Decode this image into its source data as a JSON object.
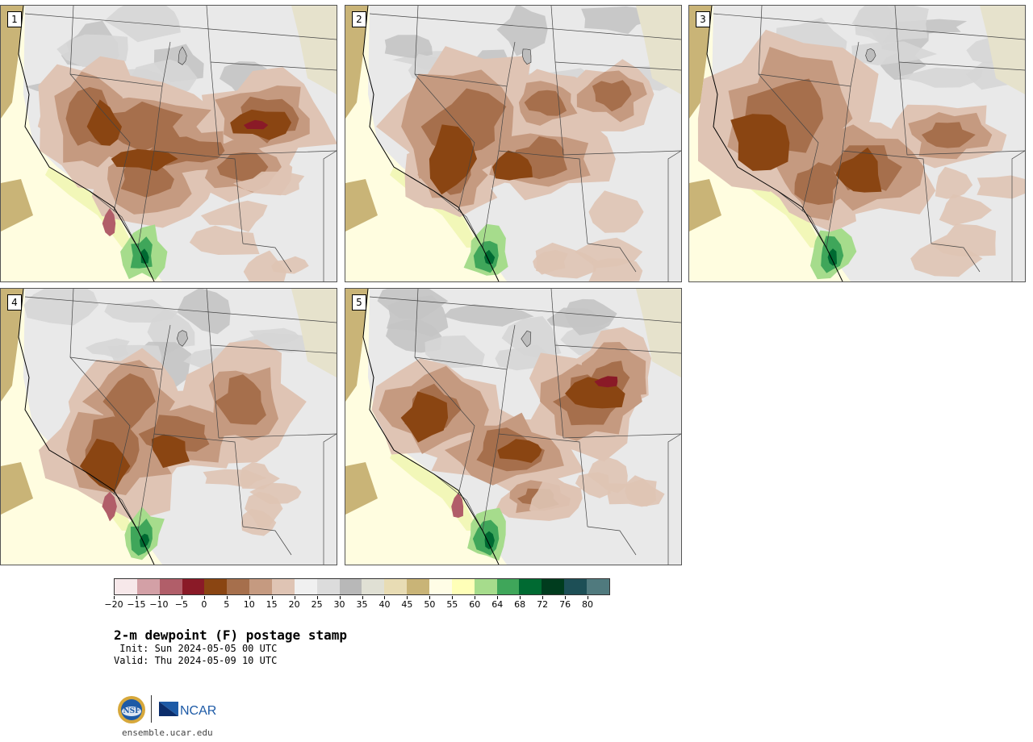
{
  "panels": [
    {
      "label": "1"
    },
    {
      "label": "2"
    },
    {
      "label": "3"
    },
    {
      "label": "4"
    },
    {
      "label": "5"
    }
  ],
  "colorbar": {
    "colors": [
      "#f7e8ea",
      "#d3a0a6",
      "#b15e69",
      "#8a1a27",
      "#8a4512",
      "#a66f4c",
      "#c59a80",
      "#dfc4b4",
      "#f0f0f0",
      "#dcdcdc",
      "#b8b8b8",
      "#e0e0d4",
      "#e8dcb4",
      "#c9b477",
      "#fffde6",
      "#ffffb8",
      "#a6dc8c",
      "#3fa65a",
      "#006a32",
      "#003c1e",
      "#1d4f56",
      "#507a7e"
    ],
    "ticks": [
      "−20",
      "−15",
      "−10",
      "−5",
      "0",
      "5",
      "10",
      "15",
      "20",
      "25",
      "30",
      "35",
      "40",
      "45",
      "50",
      "55",
      "60",
      "64",
      "68",
      "72",
      "76",
      "80"
    ]
  },
  "title": "2-m dewpoint (F) postage stamp",
  "init": " Init: Sun 2024-05-05 00 UTC",
  "valid": "Valid: Thu 2024-05-09 10 UTC",
  "logos": {
    "nsf": "nsf-logo",
    "ncar": "NCAR"
  },
  "url": "ensemble.ucar.edu"
}
